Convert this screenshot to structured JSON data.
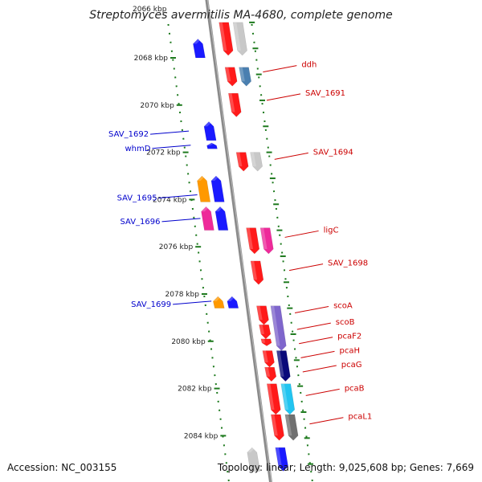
{
  "title": "Streptomyces avermitilis MA-4680, complete genome",
  "accession": "Accession: NC_003155",
  "topology": "Topology: linear; Length: 9,025,608 bp; Genes: 7,669",
  "colors": {
    "axis": "#8a8a8a",
    "guide": "#1e7a1e",
    "label_forward": "#cc0000",
    "label_reverse": "#0000cc",
    "red": "#ff1a1a",
    "blue": "#1a1aff",
    "grey": "#c8c8c8",
    "steel": "#4a7fb0",
    "orange": "#ff9900",
    "magenta": "#ee2a9a",
    "lavender": "#7f66cc",
    "navy": "#0a0a7a",
    "cyan": "#22c4f0",
    "darkgrey": "#707070"
  },
  "top_partial_tick": "2066 kbp",
  "scale_ticks": [
    {
      "label": "2068 kbp",
      "kbp": 2068
    },
    {
      "label": "2070 kbp",
      "kbp": 2070
    },
    {
      "label": "2072 kbp",
      "kbp": 2072
    },
    {
      "label": "2074 kbp",
      "kbp": 2074
    },
    {
      "label": "2076 kbp",
      "kbp": 2076
    },
    {
      "label": "2078 kbp",
      "kbp": 2078
    },
    {
      "label": "2080 kbp",
      "kbp": 2080
    },
    {
      "label": "2082 kbp",
      "kbp": 2082
    },
    {
      "label": "2084 kbp",
      "kbp": 2084
    }
  ],
  "genes": [
    {
      "kbp": 2066.5,
      "len": 1.4,
      "strand": "+",
      "lane": 1,
      "color": "red"
    },
    {
      "kbp": 2066.5,
      "len": 1.4,
      "strand": "+",
      "lane": 2,
      "color": "grey"
    },
    {
      "kbp": 2067.2,
      "len": 0.8,
      "strand": "-",
      "lane": -1,
      "color": "blue"
    },
    {
      "kbp": 2068.4,
      "len": 0.8,
      "strand": "+",
      "lane": 1,
      "color": "red"
    },
    {
      "kbp": 2068.4,
      "len": 0.8,
      "strand": "+",
      "lane": 2,
      "color": "steel"
    },
    {
      "kbp": 2069.5,
      "len": 1.0,
      "strand": "+",
      "lane": 1,
      "color": "red"
    },
    {
      "kbp": 2070.7,
      "len": 0.8,
      "strand": "-",
      "lane": -1,
      "color": "blue"
    },
    {
      "kbp": 2071.6,
      "len": 0.25,
      "strand": "-",
      "lane": -1,
      "color": "blue"
    },
    {
      "kbp": 2072.0,
      "len": 0.8,
      "strand": "+",
      "lane": 1,
      "color": "red"
    },
    {
      "kbp": 2072.0,
      "len": 0.8,
      "strand": "+",
      "lane": 2,
      "color": "grey"
    },
    {
      "kbp": 2073.0,
      "len": 1.1,
      "strand": "-",
      "lane": -2,
      "color": "orange"
    },
    {
      "kbp": 2073.0,
      "len": 1.1,
      "strand": "-",
      "lane": -1,
      "color": "blue"
    },
    {
      "kbp": 2074.3,
      "len": 1.0,
      "strand": "-",
      "lane": -2,
      "color": "magenta"
    },
    {
      "kbp": 2074.3,
      "len": 1.0,
      "strand": "-",
      "lane": -1,
      "color": "blue"
    },
    {
      "kbp": 2075.2,
      "len": 1.1,
      "strand": "+",
      "lane": 1,
      "color": "red"
    },
    {
      "kbp": 2075.2,
      "len": 1.1,
      "strand": "+",
      "lane": 2,
      "color": "magenta"
    },
    {
      "kbp": 2076.6,
      "len": 1.0,
      "strand": "+",
      "lane": 1,
      "color": "red"
    },
    {
      "kbp": 2078.1,
      "len": 0.5,
      "strand": "-",
      "lane": -2,
      "color": "orange"
    },
    {
      "kbp": 2078.1,
      "len": 0.5,
      "strand": "-",
      "lane": -1,
      "color": "blue"
    },
    {
      "kbp": 2078.5,
      "len": 0.8,
      "strand": "+",
      "lane": 1,
      "color": "red"
    },
    {
      "kbp": 2078.5,
      "len": 1.9,
      "strand": "+",
      "lane": 2,
      "color": "lavender"
    },
    {
      "kbp": 2079.3,
      "len": 0.6,
      "strand": "+",
      "lane": 1,
      "color": "red"
    },
    {
      "kbp": 2079.9,
      "len": 0.3,
      "strand": "+",
      "lane": 1,
      "color": "red"
    },
    {
      "kbp": 2080.4,
      "len": 0.7,
      "strand": "+",
      "lane": 1,
      "color": "red"
    },
    {
      "kbp": 2080.4,
      "len": 1.3,
      "strand": "+",
      "lane": 2,
      "color": "navy"
    },
    {
      "kbp": 2081.1,
      "len": 0.6,
      "strand": "+",
      "lane": 1,
      "color": "red"
    },
    {
      "kbp": 2081.8,
      "len": 1.3,
      "strand": "+",
      "lane": 1,
      "color": "red"
    },
    {
      "kbp": 2081.8,
      "len": 1.3,
      "strand": "+",
      "lane": 2,
      "color": "cyan"
    },
    {
      "kbp": 2083.1,
      "len": 1.1,
      "strand": "+",
      "lane": 1,
      "color": "red"
    },
    {
      "kbp": 2083.1,
      "len": 1.1,
      "strand": "+",
      "lane": 2,
      "color": "darkgrey"
    },
    {
      "kbp": 2084.5,
      "len": 1.0,
      "strand": "-",
      "lane": -1,
      "color": "grey"
    },
    {
      "kbp": 2084.5,
      "len": 1.0,
      "strand": "+",
      "lane": 1,
      "color": "blue"
    }
  ],
  "labels_right": [
    {
      "text": "ddh",
      "kbp": 2068.6
    },
    {
      "text": "SAV_1691",
      "kbp": 2069.8
    },
    {
      "text": "SAV_1694",
      "kbp": 2072.3
    },
    {
      "text": "ligC",
      "kbp": 2075.6
    },
    {
      "text": "SAV_1698",
      "kbp": 2077.0
    },
    {
      "text": "scoA",
      "kbp": 2078.8
    },
    {
      "text": "scoB",
      "kbp": 2079.5
    },
    {
      "text": "pcaF2",
      "kbp": 2080.1
    },
    {
      "text": "pcaH",
      "kbp": 2080.7
    },
    {
      "text": "pcaG",
      "kbp": 2081.3
    },
    {
      "text": "pcaB",
      "kbp": 2082.3
    },
    {
      "text": "pcaL1",
      "kbp": 2083.5
    }
  ],
  "labels_left": [
    {
      "text": "SAV_1692",
      "kbp": 2071.1
    },
    {
      "text": "whmD",
      "kbp": 2071.7
    },
    {
      "text": "SAV_1695",
      "kbp": 2073.8
    },
    {
      "text": "SAV_1696",
      "kbp": 2074.8
    },
    {
      "text": "SAV_1699",
      "kbp": 2078.3
    }
  ]
}
